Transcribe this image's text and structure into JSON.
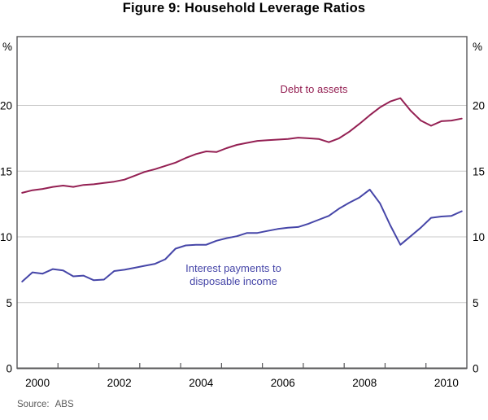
{
  "title": "Figure 9: Household Leverage Ratios",
  "source_label": "Source:",
  "source_value": "ABS",
  "chart_data": {
    "type": "line",
    "title": "Figure 9: Household Leverage Ratios",
    "unit_left": "%",
    "unit_right": "%",
    "xlim": [
      2000,
      2011
    ],
    "ylim": [
      0,
      25.2
    ],
    "y_ticks": [
      0,
      5,
      10,
      15,
      20
    ],
    "grid_values": [
      5,
      10,
      15,
      20
    ],
    "x_tick_labels": [
      "2000",
      "2002",
      "2004",
      "2006",
      "2008",
      "2010"
    ],
    "year_ticks": [
      2001,
      2002,
      2003,
      2004,
      2005,
      2006,
      2007,
      2008,
      2009,
      2010
    ],
    "grid_on": true,
    "legend_position": "inline-annotations",
    "colors": {
      "debt_to_assets": "#942053",
      "interest_payments": "#4646A8",
      "grid": "#c9c9c9",
      "axis": "#58585a"
    },
    "series": [
      {
        "id": "debt_to_assets",
        "name": "Debt to assets",
        "color": "#942053",
        "x": [
          2000.125,
          2000.375,
          2000.625,
          2000.875,
          2001.125,
          2001.375,
          2001.625,
          2001.875,
          2002.125,
          2002.375,
          2002.625,
          2002.875,
          2003.125,
          2003.375,
          2003.625,
          2003.875,
          2004.125,
          2004.375,
          2004.625,
          2004.875,
          2005.125,
          2005.375,
          2005.625,
          2005.875,
          2006.125,
          2006.375,
          2006.625,
          2006.875,
          2007.125,
          2007.375,
          2007.625,
          2007.875,
          2008.125,
          2008.375,
          2008.625,
          2008.875,
          2009.125,
          2009.375,
          2009.625,
          2009.875,
          2010.125,
          2010.375,
          2010.625,
          2010.875
        ],
        "values": [
          13.35,
          13.55,
          13.65,
          13.8,
          13.9,
          13.8,
          13.95,
          14.0,
          14.1,
          14.2,
          14.35,
          14.65,
          14.95,
          15.15,
          15.4,
          15.65,
          16.0,
          16.3,
          16.5,
          16.45,
          16.75,
          17.0,
          17.15,
          17.3,
          17.35,
          17.4,
          17.45,
          17.55,
          17.5,
          17.45,
          17.2,
          17.5,
          18.0,
          18.6,
          19.25,
          19.85,
          20.3,
          20.55,
          19.6,
          18.85,
          18.45,
          18.8,
          18.85,
          19.0
        ]
      },
      {
        "id": "interest_payments",
        "name": "Interest payments to disposable income",
        "label_line1": "Interest payments to",
        "label_line2": "disposable income",
        "color": "#4646A8",
        "x": [
          2000.125,
          2000.375,
          2000.625,
          2000.875,
          2001.125,
          2001.375,
          2001.625,
          2001.875,
          2002.125,
          2002.375,
          2002.625,
          2002.875,
          2003.125,
          2003.375,
          2003.625,
          2003.875,
          2004.125,
          2004.375,
          2004.625,
          2004.875,
          2005.125,
          2005.375,
          2005.625,
          2005.875,
          2006.125,
          2006.375,
          2006.625,
          2006.875,
          2007.125,
          2007.375,
          2007.625,
          2007.875,
          2008.125,
          2008.375,
          2008.625,
          2008.875,
          2009.125,
          2009.375,
          2009.625,
          2009.875,
          2010.125,
          2010.375,
          2010.625,
          2010.875
        ],
        "values": [
          6.6,
          7.3,
          7.2,
          7.55,
          7.45,
          7.0,
          7.05,
          6.7,
          6.75,
          7.4,
          7.5,
          7.65,
          7.8,
          7.95,
          8.3,
          9.1,
          9.35,
          9.4,
          9.4,
          9.7,
          9.9,
          10.05,
          10.3,
          10.3,
          10.45,
          10.6,
          10.7,
          10.75,
          11.0,
          11.3,
          11.6,
          12.15,
          12.6,
          13.0,
          13.6,
          12.55,
          10.9,
          9.4,
          10.05,
          10.7,
          11.45,
          11.55,
          11.6,
          11.95
        ]
      }
    ]
  }
}
